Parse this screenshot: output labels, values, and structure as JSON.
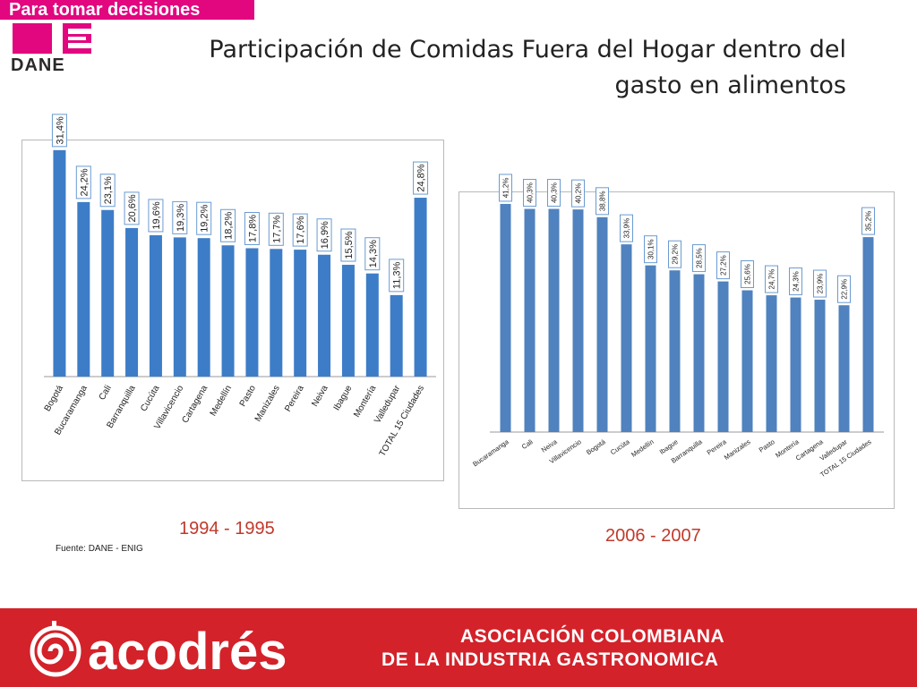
{
  "header": {
    "tagline": "Para tomar decisiones",
    "logo_text": "DANE",
    "title_line1": "Participación de Comidas Fuera del Hogar dentro del",
    "title_line2": "gasto en alimentos"
  },
  "chart_data": [
    {
      "type": "bar",
      "period": "1994 - 1995",
      "categories": [
        "Bogotá",
        "Bucaramanga",
        "Cali",
        "Barranquilla",
        "Cucúta",
        "Villavicencio",
        "Cartagena",
        "Medellín",
        "Pasto",
        "Manizales",
        "Pereira",
        "Neiva",
        "Ibague",
        "Montería",
        "Valledupar",
        "TOTAL 15 Ciudades"
      ],
      "values": [
        31.4,
        24.2,
        23.1,
        20.6,
        19.6,
        19.3,
        19.2,
        18.2,
        17.8,
        17.7,
        17.6,
        16.9,
        15.5,
        14.3,
        11.3,
        24.8
      ],
      "labels": [
        "31,4%",
        "24,2%",
        "23,1%",
        "20,6%",
        "19,6%",
        "19,3%",
        "19,2%",
        "18,2%",
        "17,8%",
        "17,7%",
        "17,6%",
        "16,9%",
        "15,5%",
        "14,3%",
        "11,3%",
        "24,8%"
      ],
      "ylim": [
        0,
        32
      ],
      "bar_color": "#3d7dc7"
    },
    {
      "type": "bar",
      "period": "2006 - 2007",
      "categories": [
        "Bucaramanga",
        "Cali",
        "Neiva",
        "Villavicencio",
        "Bogotá",
        "Cucúta",
        "Medellín",
        "Ibague",
        "Barranquilla",
        "Pereira",
        "Manizales",
        "Pasto",
        "Montería",
        "Cartagena",
        "Valledupar",
        "TOTAL 15 Ciudades"
      ],
      "values": [
        41.2,
        40.3,
        40.3,
        40.2,
        38.8,
        33.9,
        30.1,
        29.2,
        28.5,
        27.2,
        25.6,
        24.7,
        24.3,
        23.9,
        22.9,
        35.2
      ],
      "labels": [
        "41,2%",
        "40,3%",
        "40,3%",
        "40,2%",
        "38,8%",
        "33,9%",
        "30,1%",
        "29,2%",
        "28,5%",
        "27,2%",
        "25,6%",
        "24,7%",
        "24,3%",
        "23,9%",
        "22,9%",
        "35,2%"
      ],
      "ylim": [
        0,
        42
      ],
      "bar_color": "#4f82be"
    }
  ],
  "source": "Fuente: DANE - ENIG",
  "footer": {
    "brand": "acodrés",
    "line1": "ASOCIACIÓN COLOMBIANA",
    "line2": "DE LA INDUSTRIA GASTRONOMICA",
    "color": "#d3222a"
  }
}
